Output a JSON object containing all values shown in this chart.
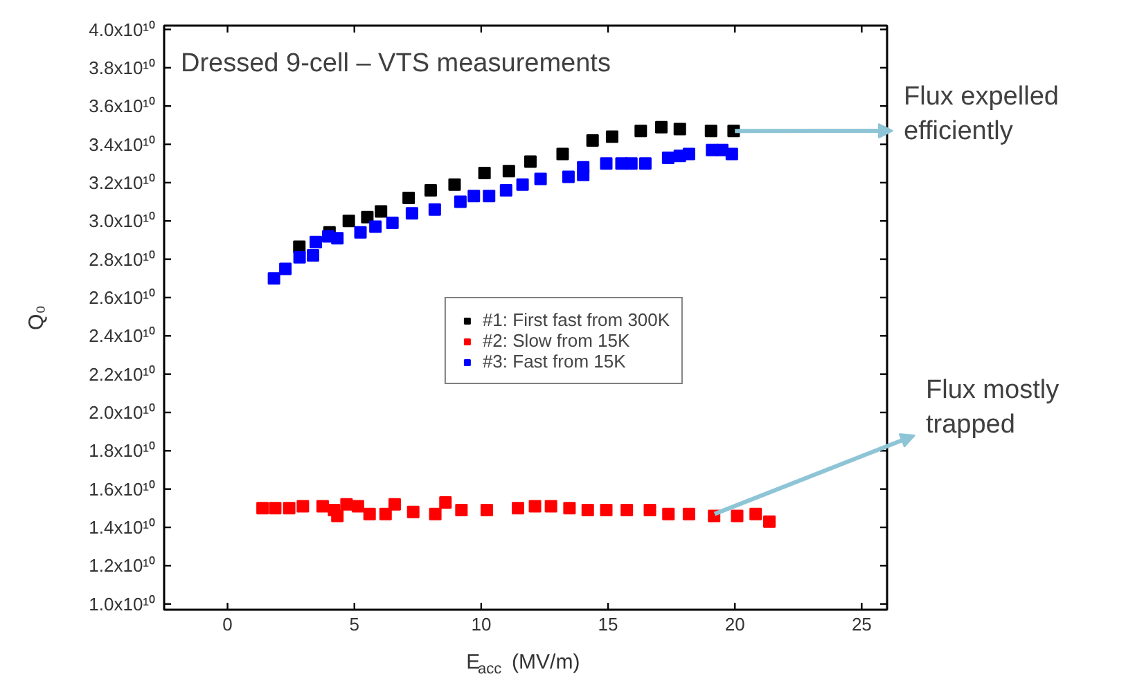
{
  "chart_data": {
    "type": "scatter",
    "title": "Dressed 9-cell – VTS measurements",
    "xlabel": "E$_{acc}$ (MV/m)",
    "ylabel": "Q₀",
    "xlim": [
      -2.5,
      26
    ],
    "xticks": [
      0,
      5,
      10,
      15,
      20,
      25
    ],
    "ylim": [
      9700000000.0,
      40200000000.0
    ],
    "yticks": [
      {
        "value": 10000000000.0,
        "label": "1.0x10¹⁰"
      },
      {
        "value": 12000000000.0,
        "label": "1.2x10¹⁰"
      },
      {
        "value": 14000000000.0,
        "label": "1.4x10¹⁰"
      },
      {
        "value": 16000000000.0,
        "label": "1.6x10¹⁰"
      },
      {
        "value": 18000000000.0,
        "label": "1.8x10¹⁰"
      },
      {
        "value": 20000000000.0,
        "label": "2.0x10¹⁰"
      },
      {
        "value": 22000000000.0,
        "label": "2.2x10¹⁰"
      },
      {
        "value": 24000000000.0,
        "label": "2.4x10¹⁰"
      },
      {
        "value": 26000000000.0,
        "label": "2.6x10¹⁰"
      },
      {
        "value": 28000000000.0,
        "label": "2.8x10¹⁰"
      },
      {
        "value": 30000000000.0,
        "label": "3.0x10¹⁰"
      },
      {
        "value": 32000000000.0,
        "label": "3.2x10¹⁰"
      },
      {
        "value": 34000000000.0,
        "label": "3.4x10¹⁰"
      },
      {
        "value": 36000000000.0,
        "label": "3.6x10¹⁰"
      },
      {
        "value": 38000000000.0,
        "label": "3.8x10¹⁰"
      },
      {
        "value": 40000000000.0,
        "label": "4.0x10¹⁰"
      }
    ],
    "marker": "square",
    "legend": "center",
    "grid": false,
    "series": [
      {
        "name": "#1: First fast from 300K",
        "color": "#000000",
        "x": [
          2.83,
          4.02,
          4.78,
          5.51,
          6.05,
          7.14,
          8.01,
          8.95,
          10.13,
          11.09,
          11.94,
          13.21,
          14.39,
          15.16,
          16.29,
          17.1,
          17.83,
          19.06,
          19.95
        ],
        "values": [
          28650000000.0,
          29400000000.0,
          30000000000.0,
          30200000000.0,
          30500000000.0,
          31200000000.0,
          31600000000.0,
          31900000000.0,
          32500000000.0,
          32600000000.0,
          33100000000.0,
          33500000000.0,
          34200000000.0,
          34400000000.0,
          34700000000.0,
          34900000000.0,
          34800000000.0,
          34700000000.0,
          34700000000.0
        ]
      },
      {
        "name": "#2: Slow from 15K",
        "color": "#ff0000",
        "x": [
          1.38,
          1.88,
          2.43,
          2.97,
          3.75,
          4.2,
          4.33,
          4.69,
          5.14,
          5.6,
          6.23,
          6.59,
          7.32,
          8.19,
          8.59,
          9.22,
          10.22,
          11.45,
          12.12,
          12.75,
          13.48,
          14.2,
          14.93,
          15.74,
          16.65,
          17.38,
          18.19,
          19.18,
          20.09,
          20.82,
          21.36
        ],
        "values": [
          15000000000.0,
          15000000000.0,
          15000000000.0,
          15100000000.0,
          15100000000.0,
          14900000000.0,
          14600000000.0,
          15200000000.0,
          15100000000.0,
          14700000000.0,
          14700000000.0,
          15200000000.0,
          14800000000.0,
          14700000000.0,
          15300000000.0,
          14900000000.0,
          14900000000.0,
          15000000000.0,
          15100000000.0,
          15100000000.0,
          15000000000.0,
          14900000000.0,
          14900000000.0,
          14900000000.0,
          14900000000.0,
          14700000000.0,
          14700000000.0,
          14600000000.0,
          14600000000.0,
          14700000000.0,
          14300000000.0
        ]
      },
      {
        "name": "#3: Fast from 15K",
        "color": "#0000ff",
        "x": [
          1.83,
          2.28,
          2.84,
          3.37,
          3.48,
          3.97,
          4.33,
          5.24,
          5.83,
          6.5,
          7.27,
          8.17,
          9.18,
          9.71,
          10.31,
          10.98,
          11.63,
          12.34,
          13.44,
          14.02,
          14.02,
          14.93,
          15.53,
          15.92,
          16.47,
          17.37,
          17.83,
          18.19,
          19.1,
          19.5,
          19.88
        ],
        "values": [
          27000000000.0,
          27500000000.0,
          28100000000.0,
          28200000000.0,
          28900000000.0,
          29200000000.0,
          29100000000.0,
          29400000000.0,
          29700000000.0,
          29900000000.0,
          30400000000.0,
          30600000000.0,
          31000000000.0,
          31300000000.0,
          31300000000.0,
          31600000000.0,
          31900000000.0,
          32200000000.0,
          32300000000.0,
          32400000000.0,
          32800000000.0,
          33000000000.0,
          33000000000.0,
          33000000000.0,
          33000000000.0,
          33300000000.0,
          33400000000.0,
          33500000000.0,
          33700000000.0,
          33700000000.0,
          33500000000.0
        ]
      }
    ],
    "annotations": [
      {
        "text": "Flux expelled efficiently",
        "x": 20,
        "y": 34700000000.0
      },
      {
        "text": "Flux mostly trapped",
        "x": 19.2,
        "y": 14700000000.0
      }
    ]
  }
}
